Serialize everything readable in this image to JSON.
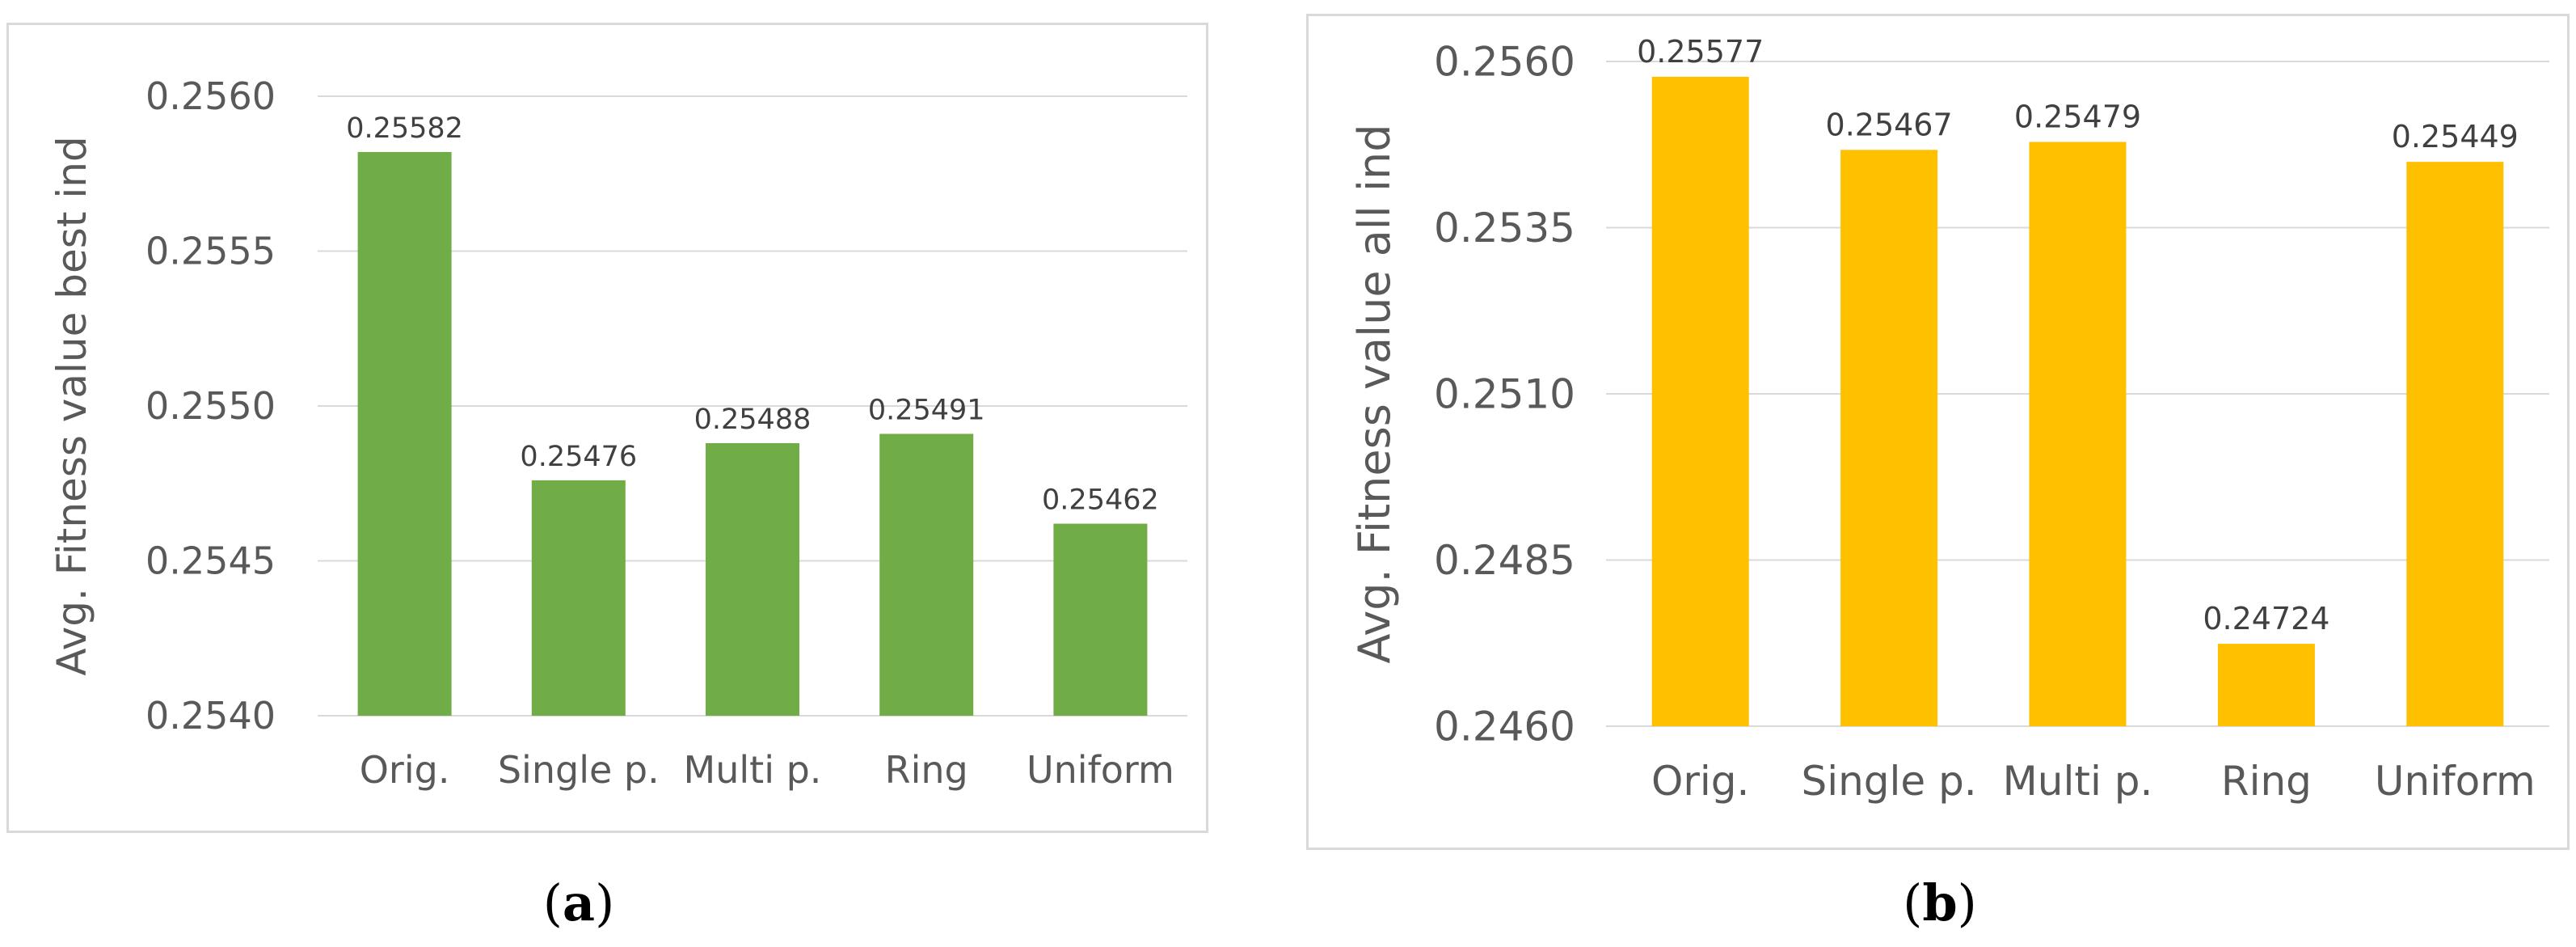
{
  "chart_data": [
    {
      "type": "bar",
      "panel": "a",
      "categories": [
        "Orig.",
        "Single p.",
        "Multi p.",
        "Ring",
        "Uniform"
      ],
      "values": [
        0.25582,
        0.25476,
        0.25488,
        0.25491,
        0.25462
      ],
      "value_labels": [
        "0.25582",
        "0.25476",
        "0.25488",
        "0.25491",
        "0.25462"
      ],
      "ylabel": "Avg. Fitness value best ind",
      "xlabel": "",
      "title": "",
      "ylim": [
        0.254,
        0.256
      ],
      "yticks": [
        "0.2540",
        "0.2545",
        "0.2550",
        "0.2555",
        "0.2560"
      ],
      "ytick_values": [
        0.254,
        0.2545,
        0.255,
        0.2555,
        0.256
      ],
      "bar_color": "#70ad47",
      "grid": true
    },
    {
      "type": "bar",
      "panel": "b",
      "categories": [
        "Orig.",
        "Single p.",
        "Multi p.",
        "Ring",
        "Uniform"
      ],
      "values": [
        0.25577,
        0.25467,
        0.25479,
        0.24724,
        0.25449
      ],
      "value_labels": [
        "0.25577",
        "0.25467",
        "0.25479",
        "0.24724",
        "0.25449"
      ],
      "ylabel": "Avg. Fitness value all ind",
      "xlabel": "",
      "title": "",
      "ylim": [
        0.246,
        0.256
      ],
      "yticks": [
        "0.2460",
        "0.2485",
        "0.2510",
        "0.2535",
        "0.2560"
      ],
      "ytick_values": [
        0.246,
        0.2485,
        0.251,
        0.2535,
        0.256
      ],
      "bar_color": "#ffc000",
      "grid": true
    }
  ],
  "captions": {
    "a": "a",
    "b": "b"
  }
}
